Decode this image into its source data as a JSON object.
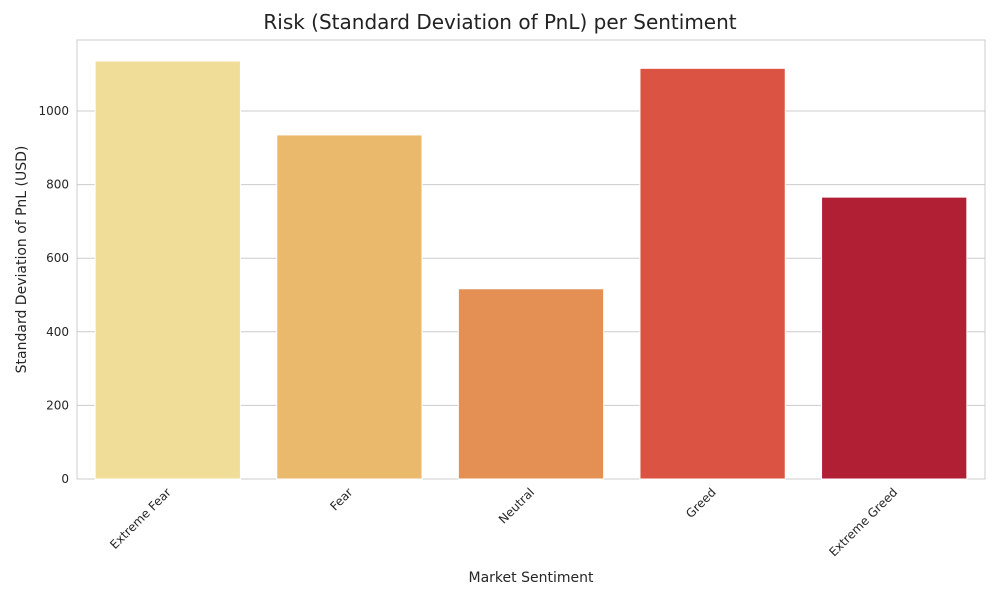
{
  "chart_data": {
    "type": "bar",
    "title": "Risk (Standard Deviation of PnL) per Sentiment",
    "xlabel": "Market Sentiment",
    "ylabel": "Standard Deviation of PnL (USD)",
    "categories": [
      "Extreme Fear",
      "Fear",
      "Neutral",
      "Greed",
      "Extreme Greed"
    ],
    "values": [
      1136,
      935,
      517,
      1116,
      766
    ],
    "colors": [
      "#f0de98",
      "#eab96b",
      "#e49054",
      "#db5342",
      "#b11f35"
    ],
    "yticks": [
      0,
      200,
      400,
      600,
      800,
      1000
    ],
    "ylim": [
      0,
      1193
    ],
    "grid": true,
    "x_tick_rotation": 45,
    "legend": "none"
  }
}
